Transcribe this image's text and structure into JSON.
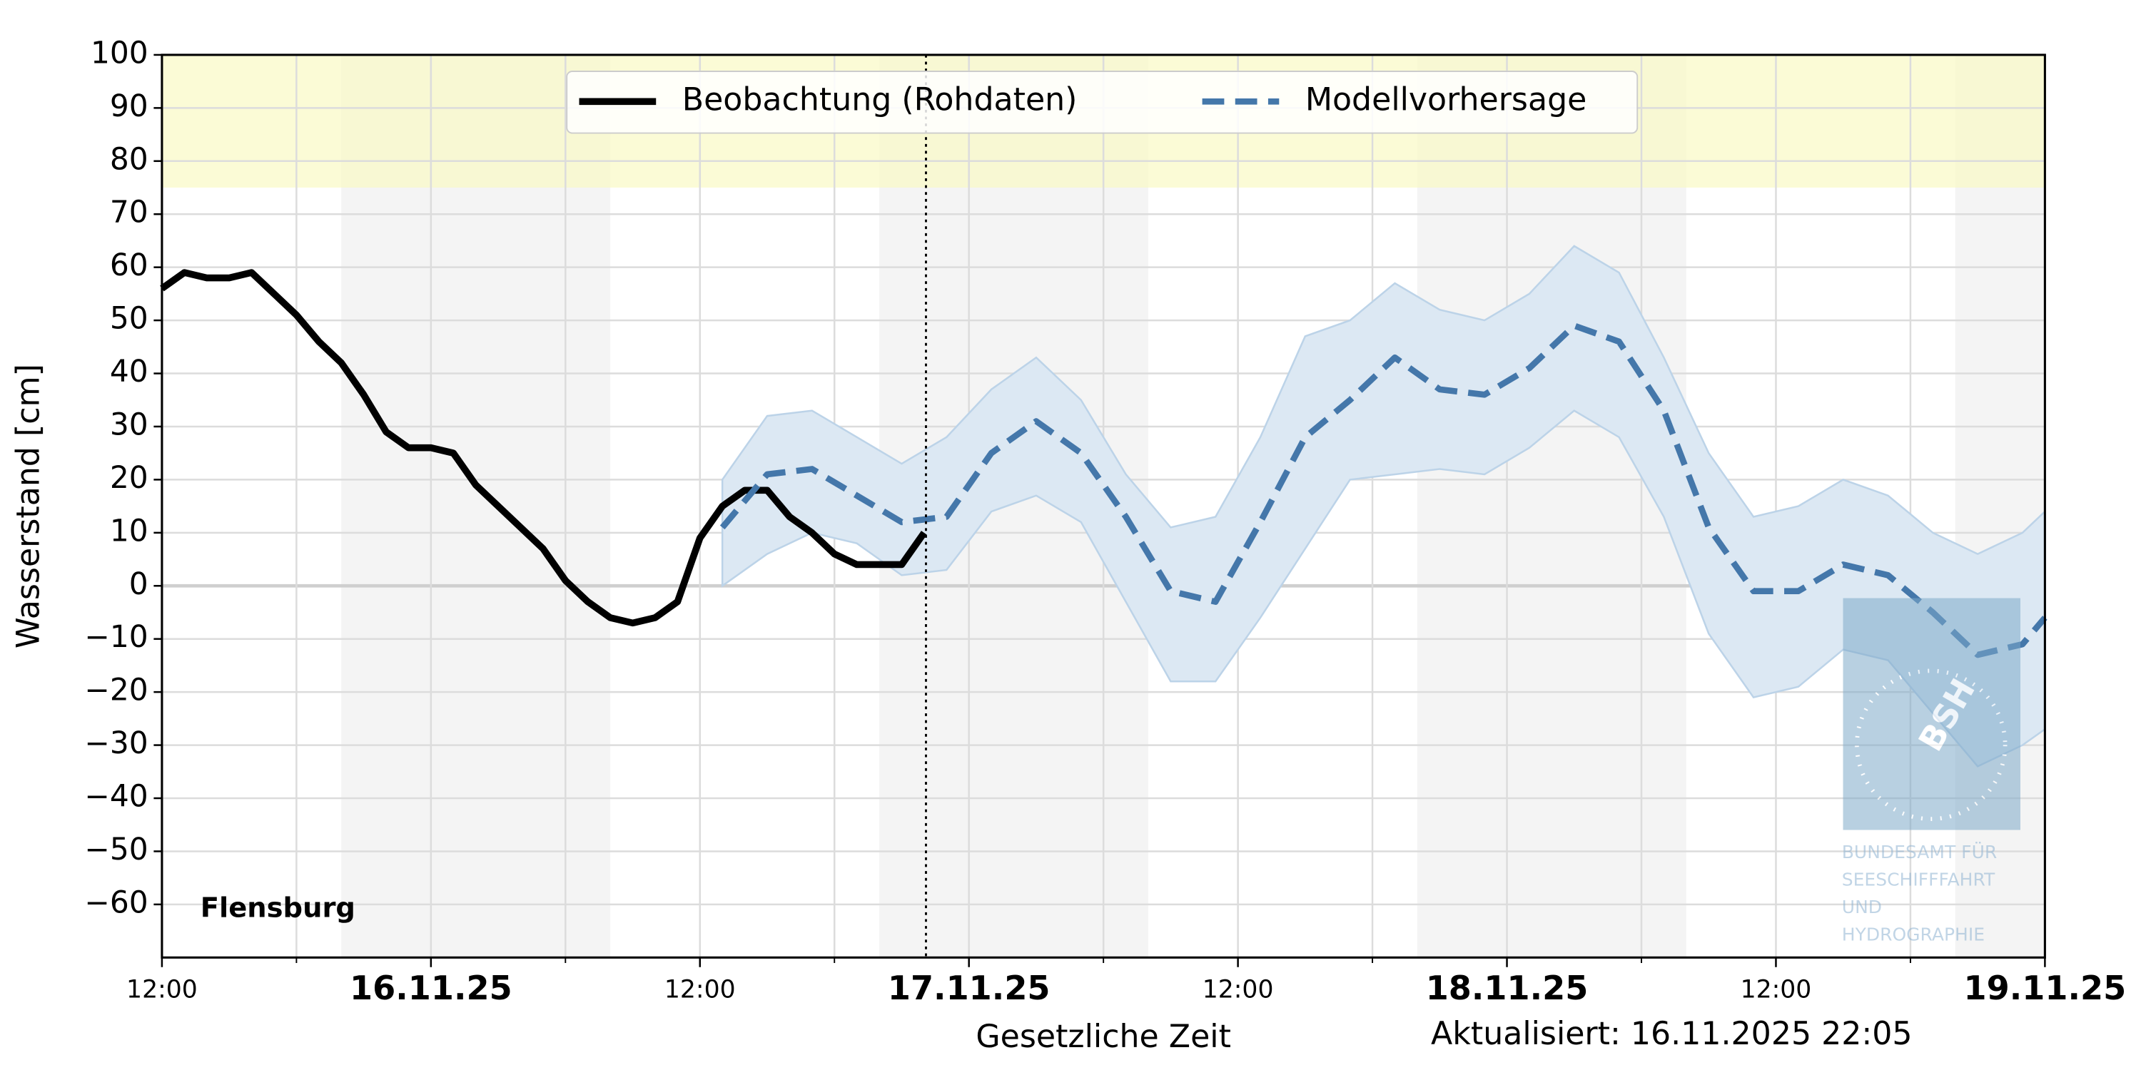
{
  "chart_data": {
    "type": "line",
    "station": "Flensburg",
    "xlabel": "Gesetzliche Zeit",
    "ylabel": "Wasserstand [cm]",
    "updated": "Aktualisiert: 16.11.2025 22:05",
    "now": "16.11.25 22:05",
    "xlim": [
      "15.11.25 12:00",
      "19.11.25 00:00"
    ],
    "xticks": [
      {
        "value": "15.11.25 12:00",
        "label": "12:00"
      },
      {
        "value": "16.11.25 00:00",
        "label": "16.11.25"
      },
      {
        "value": "16.11.25 12:00",
        "label": "12:00"
      },
      {
        "value": "17.11.25 00:00",
        "label": "17.11.25"
      },
      {
        "value": "17.11.25 12:00",
        "label": "12:00"
      },
      {
        "value": "18.11.25 00:00",
        "label": "18.11.25"
      },
      {
        "value": "18.11.25 12:00",
        "label": "12:00"
      },
      {
        "value": "19.11.25 00:00",
        "label": "19.11.25"
      }
    ],
    "xminorticks": [
      "15.11.25 18:00",
      "16.11.25 06:00",
      "16.11.25 18:00",
      "17.11.25 06:00",
      "17.11.25 18:00",
      "18.11.25 06:00",
      "18.11.25 18:00"
    ],
    "ylim": [
      -70,
      100
    ],
    "yticks": [
      {
        "value": -60,
        "label": "−60"
      },
      {
        "value": -50,
        "label": "−50"
      },
      {
        "value": -40,
        "label": "−40"
      },
      {
        "value": -30,
        "label": "−30"
      },
      {
        "value": -20,
        "label": "−20"
      },
      {
        "value": -10,
        "label": "−10"
      },
      0,
      10,
      20,
      30,
      40,
      50,
      60,
      70,
      80,
      90,
      100
    ],
    "grid": true,
    "warning_band": {
      "range": [
        75,
        100
      ],
      "color": "#f9f9c8"
    },
    "night_shading": [
      [
        "15.11.25 20:00",
        "16.11.25 08:00"
      ],
      [
        "16.11.25 20:00",
        "17.11.25 08:00"
      ],
      [
        "17.11.25 20:00",
        "18.11.25 08:00"
      ],
      [
        "18.11.25 20:00",
        "19.11.25 00:00"
      ]
    ],
    "legend": "upper center",
    "series": [
      {
        "name": "Beobachtung (Rohdaten)",
        "color": "#000000",
        "style": "solid",
        "x": [
          "15.11.25 12:00",
          "15.11.25 13:00",
          "15.11.25 14:00",
          "15.11.25 15:00",
          "15.11.25 16:00",
          "15.11.25 17:00",
          "15.11.25 18:00",
          "15.11.25 19:00",
          "15.11.25 20:00",
          "15.11.25 21:00",
          "15.11.25 22:00",
          "15.11.25 23:00",
          "16.11.25 00:00",
          "16.11.25 01:00",
          "16.11.25 02:00",
          "16.11.25 03:00",
          "16.11.25 04:00",
          "16.11.25 05:00",
          "16.11.25 06:00",
          "16.11.25 07:00",
          "16.11.25 08:00",
          "16.11.25 09:00",
          "16.11.25 10:00",
          "16.11.25 11:00",
          "16.11.25 12:00",
          "16.11.25 13:00",
          "16.11.25 14:00",
          "16.11.25 15:00",
          "16.11.25 16:00",
          "16.11.25 17:00",
          "16.11.25 18:00",
          "16.11.25 19:00",
          "16.11.25 20:00",
          "16.11.25 21:00",
          "16.11.25 22:00"
        ],
        "values": [
          56,
          59,
          58,
          58,
          59,
          55,
          51,
          46,
          42,
          36,
          29,
          26,
          26,
          25,
          19,
          15,
          11,
          7,
          1,
          -3,
          -6,
          -7,
          -6,
          -3,
          9,
          15,
          18,
          18,
          13,
          10,
          6,
          4,
          4,
          4,
          10
        ]
      },
      {
        "name": "Modellvorhersage",
        "color": "#4477aa",
        "style": "dashed",
        "band_color": "#dce8f3",
        "x": [
          "16.11.25 13:00",
          "16.11.25 15:00",
          "16.11.25 17:00",
          "16.11.25 19:00",
          "16.11.25 21:00",
          "16.11.25 23:00",
          "17.11.25 01:00",
          "17.11.25 03:00",
          "17.11.25 05:00",
          "17.11.25 07:00",
          "17.11.25 09:00",
          "17.11.25 11:00",
          "17.11.25 13:00",
          "17.11.25 15:00",
          "17.11.25 17:00",
          "17.11.25 19:00",
          "17.11.25 21:00",
          "17.11.25 23:00",
          "18.11.25 01:00",
          "18.11.25 03:00",
          "18.11.25 05:00",
          "18.11.25 07:00",
          "18.11.25 09:00",
          "18.11.25 11:00",
          "18.11.25 13:00",
          "18.11.25 15:00",
          "18.11.25 17:00",
          "18.11.25 19:00",
          "18.11.25 21:00",
          "18.11.25 23:00",
          "19.11.25 00:00"
        ],
        "values": [
          11,
          21,
          22,
          17,
          12,
          13,
          25,
          31,
          25,
          13,
          -1,
          -3,
          12,
          28,
          35,
          43,
          37,
          36,
          41,
          49,
          46,
          33,
          11,
          -1,
          -1,
          4,
          2,
          -5,
          -13,
          -11,
          -6
        ],
        "lower": [
          0,
          6,
          10,
          8,
          2,
          3,
          14,
          17,
          12,
          -3,
          -18,
          -18,
          -6,
          7,
          20,
          21,
          22,
          21,
          26,
          33,
          28,
          13,
          -9,
          -21,
          -19,
          -12,
          -14,
          -24,
          -34,
          -30,
          -27
        ],
        "upper": [
          20,
          32,
          33,
          28,
          23,
          28,
          37,
          43,
          35,
          21,
          11,
          13,
          28,
          47,
          50,
          57,
          52,
          50,
          55,
          64,
          59,
          43,
          25,
          13,
          15,
          20,
          17,
          10,
          6,
          10,
          14
        ]
      }
    ],
    "watermark": {
      "logo": "BSH",
      "lines": [
        "BUNDESAMT FÜR",
        "SEESCHIFFFAHRT",
        "UND",
        "HYDROGRAPHIE"
      ]
    }
  }
}
